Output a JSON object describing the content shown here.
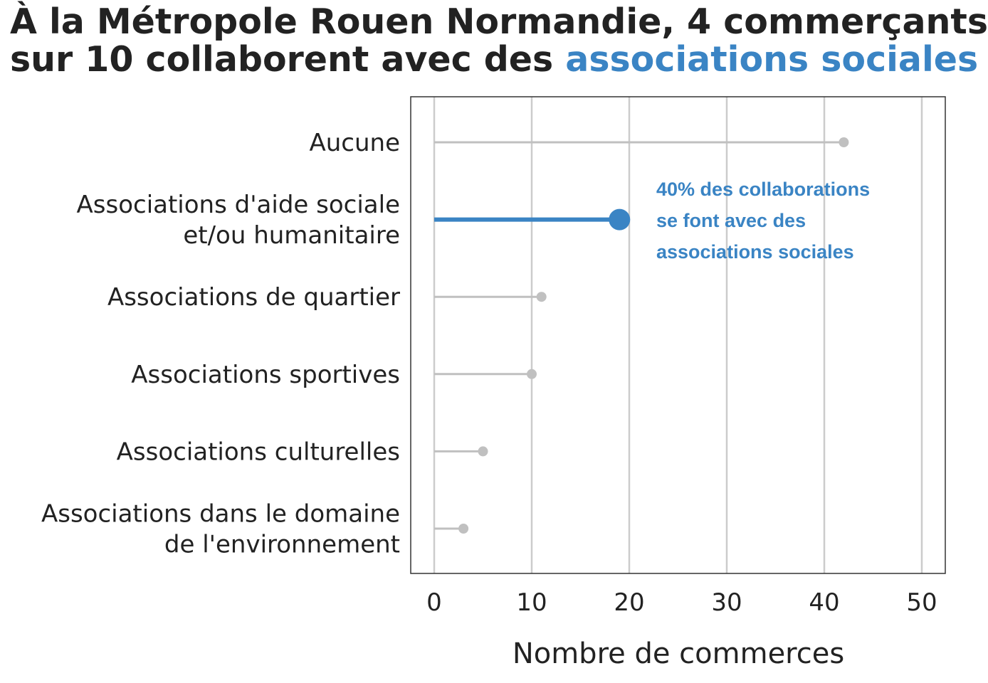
{
  "title": {
    "line1": "À la Métropole Rouen Normandie, 4 commerçants",
    "line2_prefix": "sur 10 collaborent avec des ",
    "line2_highlight": "associations sociales"
  },
  "chart_data": {
    "type": "lollipop",
    "categories": [
      [
        "Aucune"
      ],
      [
        "Associations d'aide sociale",
        "et/ou humanitaire"
      ],
      [
        "Associations de quartier"
      ],
      [
        "Associations sportives"
      ],
      [
        "Associations culturelles"
      ],
      [
        "Associations dans le domaine",
        "de l'environnement"
      ]
    ],
    "values": [
      42,
      19,
      11,
      10,
      5,
      3
    ],
    "highlight_index": 1,
    "xlabel": "Nombre de commerces",
    "xlim": [
      0,
      50
    ],
    "xticks": [
      0,
      10,
      20,
      30,
      40,
      50
    ],
    "grid": "vertical",
    "annotation": [
      "40% des collaborations",
      "se font avec des",
      "associations sociales"
    ],
    "colors": {
      "highlight": "#3a84c4",
      "default": "#c0c0c0",
      "grid": "#cccccc",
      "frame": "#333333",
      "text": "#222222"
    }
  }
}
